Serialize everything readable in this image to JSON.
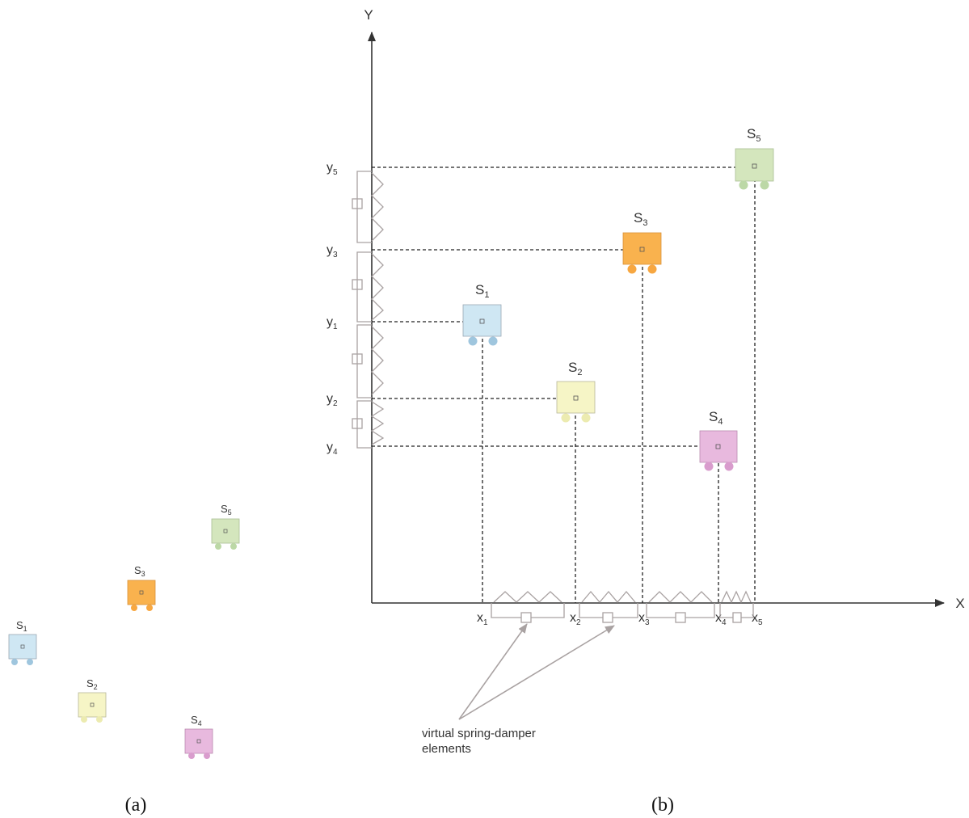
{
  "robot_colors": {
    "s1": {
      "fill": "#cfe7f3",
      "wheel": "#9fc6de",
      "text": "#5a79a0"
    },
    "s2": {
      "fill": "#f6f5c6",
      "wheel": "#ecebb0",
      "text": "#9a9a70"
    },
    "s3": {
      "fill": "#f9b24e",
      "wheel": "#f7a741",
      "text": "#e8973a"
    },
    "s4": {
      "fill": "#e8b9de",
      "wheel": "#d99ccd",
      "text": "#9e5484"
    },
    "s5": {
      "fill": "#d4e6bd",
      "wheel": "#bcd8a6",
      "text": "#7d9a63"
    }
  },
  "panel_a": {
    "caption": "(a)",
    "robots": [
      {
        "id": "s1",
        "label": "S",
        "sub": "1"
      },
      {
        "id": "s2",
        "label": "S",
        "sub": "2"
      },
      {
        "id": "s3",
        "label": "S",
        "sub": "3"
      },
      {
        "id": "s4",
        "label": "S",
        "sub": "4"
      },
      {
        "id": "s5",
        "label": "S",
        "sub": "5"
      }
    ]
  },
  "panel_b": {
    "caption": "(b)",
    "x_axis_label": "X",
    "y_axis_label": "Y",
    "robots": [
      {
        "id": "s1",
        "label": "S",
        "sub": "1"
      },
      {
        "id": "s2",
        "label": "S",
        "sub": "2"
      },
      {
        "id": "s3",
        "label": "S",
        "sub": "3"
      },
      {
        "id": "s4",
        "label": "S",
        "sub": "4"
      },
      {
        "id": "s5",
        "label": "S",
        "sub": "5"
      }
    ],
    "x_ticks": [
      {
        "label": "x",
        "sub": "1"
      },
      {
        "label": "x",
        "sub": "2"
      },
      {
        "label": "x",
        "sub": "3"
      },
      {
        "label": "x",
        "sub": "4"
      },
      {
        "label": "x",
        "sub": "5"
      }
    ],
    "y_ticks": [
      {
        "label": "y",
        "sub": "5"
      },
      {
        "label": "y",
        "sub": "3"
      },
      {
        "label": "y",
        "sub": "1"
      },
      {
        "label": "y",
        "sub": "2"
      },
      {
        "label": "y",
        "sub": "4"
      }
    ],
    "annotation": {
      "line1": "virtual spring-damper",
      "line2": "elements"
    }
  }
}
